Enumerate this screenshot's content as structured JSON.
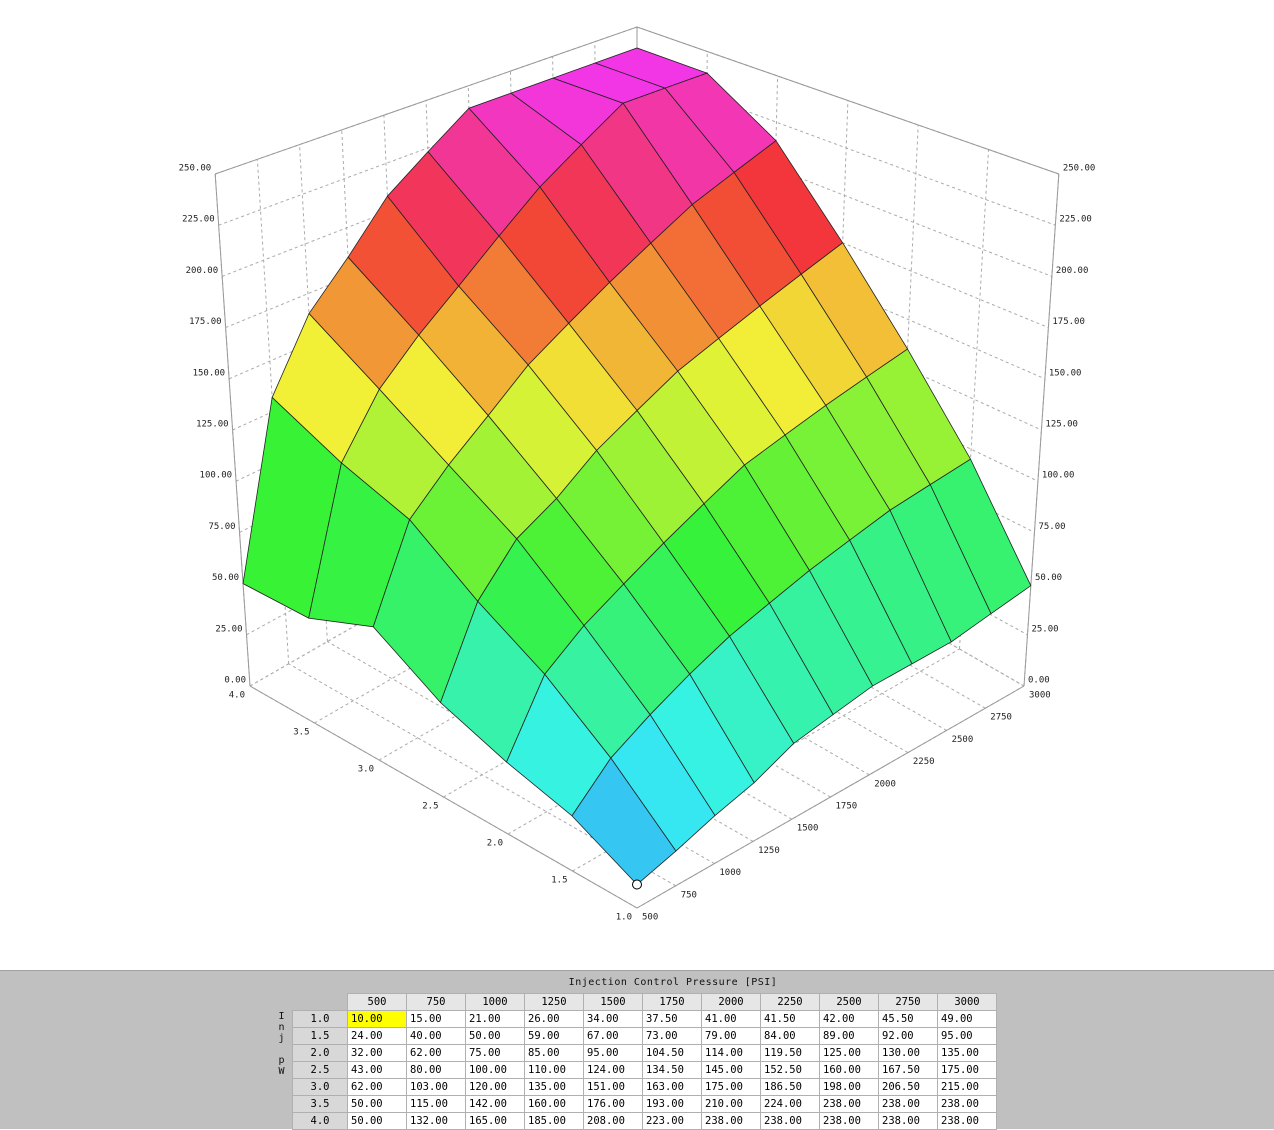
{
  "chart_data": {
    "type": "surface3d",
    "x_label": "Injection Control Pressure [PSI]",
    "y_label": "Inj pW",
    "x": [
      500,
      750,
      1000,
      1250,
      1500,
      1750,
      2000,
      2250,
      2500,
      2750,
      3000
    ],
    "y": [
      {
        "value": 1.0,
        "label": "1.0"
      },
      {
        "value": 1.5,
        "label": "1.5"
      },
      {
        "value": 2.0,
        "label": "2.0"
      },
      {
        "value": 2.5,
        "label": "2.5"
      },
      {
        "value": 3.0,
        "label": "3.0"
      },
      {
        "value": 3.5,
        "label": "3.5"
      },
      {
        "value": 4.0,
        "label": "4.0"
      }
    ],
    "values": [
      [
        10,
        15,
        21,
        26,
        34,
        37.5,
        41,
        41.5,
        42,
        45.5,
        49
      ],
      [
        24,
        40,
        50,
        59,
        67,
        73,
        79,
        84,
        89,
        92,
        95
      ],
      [
        32,
        62,
        75,
        85,
        95,
        104.5,
        114,
        119.5,
        125,
        130,
        135
      ],
      [
        43,
        80,
        100,
        110,
        124,
        134.5,
        145,
        152.5,
        160,
        167.5,
        175
      ],
      [
        62,
        103,
        120,
        135,
        151,
        163,
        175,
        186.5,
        198,
        206.5,
        215
      ],
      [
        50,
        115,
        142,
        160,
        176,
        193,
        210,
        224,
        238,
        238,
        238
      ],
      [
        50,
        132,
        165,
        185,
        208,
        223,
        238,
        238,
        238,
        238,
        238
      ]
    ],
    "value_labels": [
      [
        "10.00",
        "15.00",
        "21.00",
        "26.00",
        "34.00",
        "37.50",
        "41.00",
        "41.50",
        "42.00",
        "45.50",
        "49.00"
      ],
      [
        "24.00",
        "40.00",
        "50.00",
        "59.00",
        "67.00",
        "73.00",
        "79.00",
        "84.00",
        "89.00",
        "92.00",
        "95.00"
      ],
      [
        "32.00",
        "62.00",
        "75.00",
        "85.00",
        "95.00",
        "104.50",
        "114.00",
        "119.50",
        "125.00",
        "130.00",
        "135.00"
      ],
      [
        "43.00",
        "80.00",
        "100.00",
        "110.00",
        "124.00",
        "134.50",
        "145.00",
        "152.50",
        "160.00",
        "167.50",
        "175.00"
      ],
      [
        "62.00",
        "103.00",
        "120.00",
        "135.00",
        "151.00",
        "163.00",
        "175.00",
        "186.50",
        "198.00",
        "206.50",
        "215.00"
      ],
      [
        "50.00",
        "115.00",
        "142.00",
        "160.00",
        "176.00",
        "193.00",
        "210.00",
        "224.00",
        "238.00",
        "238.00",
        "238.00"
      ],
      [
        "50.00",
        "132.00",
        "165.00",
        "185.00",
        "208.00",
        "223.00",
        "238.00",
        "238.00",
        "238.00",
        "238.00",
        "238.00"
      ]
    ],
    "xlim": [
      500,
      3000
    ],
    "ylim": [
      1.0,
      4.0
    ],
    "zlim": [
      0,
      250
    ],
    "zticks": [
      {
        "value": 0,
        "label": "0.00"
      },
      {
        "value": 25,
        "label": "25.00"
      },
      {
        "value": 50,
        "label": "50.00"
      },
      {
        "value": 75,
        "label": "75.00"
      },
      {
        "value": 100,
        "label": "100.00"
      },
      {
        "value": 125,
        "label": "125.00"
      },
      {
        "value": 150,
        "label": "150.00"
      },
      {
        "value": 175,
        "label": "175.00"
      },
      {
        "value": 200,
        "label": "200.00"
      },
      {
        "value": 225,
        "label": "225.00"
      },
      {
        "value": 250,
        "label": "250.00"
      }
    ],
    "grid": true,
    "selected_cell": {
      "row": 0,
      "col": 0
    }
  }
}
